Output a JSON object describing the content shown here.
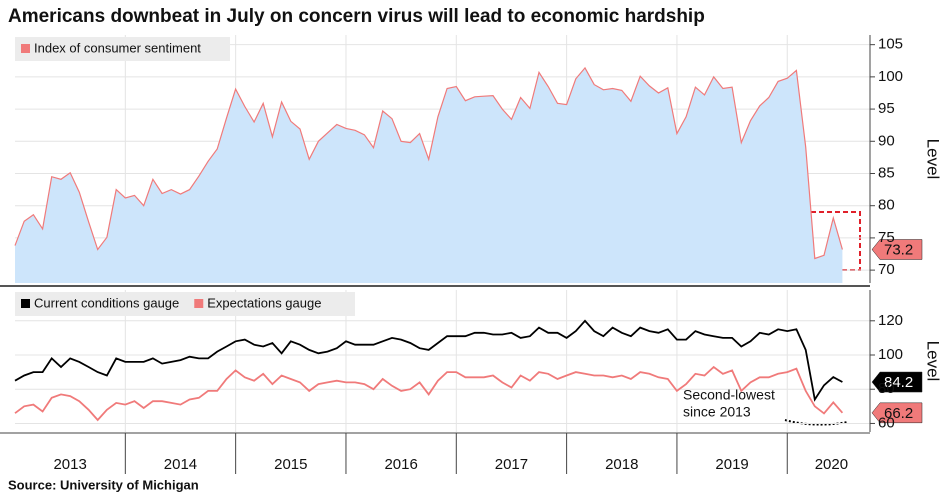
{
  "title": "Americans downbeat in July on concern virus will lead to economic hardship",
  "source": "Source: University of Michigan",
  "chart_data": [
    {
      "type": "area",
      "y_axis_label": "Level",
      "series": [
        {
          "name": "Index of consumer sentiment",
          "color": "#f07a7a",
          "fill": "#cde5fb",
          "values": [
            73.8,
            77.6,
            78.6,
            76.4,
            84.5,
            84.1,
            85.1,
            82.1,
            77.5,
            73.2,
            75.1,
            82.5,
            81.2,
            81.6,
            80.0,
            84.1,
            81.9,
            82.5,
            81.8,
            82.5,
            84.6,
            86.9,
            88.8,
            93.6,
            98.1,
            95.4,
            93.0,
            95.9,
            90.7,
            96.1,
            93.1,
            91.9,
            87.2,
            90.0,
            91.3,
            92.6,
            92.0,
            91.7,
            91.0,
            89.0,
            94.7,
            93.5,
            90.0,
            89.8,
            91.2,
            87.2,
            93.8,
            98.2,
            98.5,
            96.3,
            96.9,
            97.0,
            97.1,
            95.0,
            93.4,
            96.8,
            95.1,
            100.7,
            98.5,
            95.9,
            95.7,
            99.7,
            101.4,
            98.8,
            98.0,
            98.2,
            97.9,
            96.2,
            100.1,
            98.6,
            97.5,
            98.3,
            91.2,
            93.8,
            98.4,
            97.2,
            100.0,
            98.2,
            98.4,
            89.8,
            93.2,
            95.5,
            96.8,
            99.3,
            99.8,
            101.0,
            89.1,
            71.8,
            72.3,
            78.1,
            73.2
          ]
        }
      ],
      "x": [
        2013.0,
        2013.083,
        2013.167,
        2013.25,
        2013.333,
        2013.417,
        2013.5,
        2013.583,
        2013.667,
        2013.75,
        2013.833,
        2013.917,
        2014.0,
        2014.083,
        2014.167,
        2014.25,
        2014.333,
        2014.417,
        2014.5,
        2014.583,
        2014.667,
        2014.75,
        2014.833,
        2014.917,
        2015.0,
        2015.083,
        2015.167,
        2015.25,
        2015.333,
        2015.417,
        2015.5,
        2015.583,
        2015.667,
        2015.75,
        2015.833,
        2015.917,
        2016.0,
        2016.083,
        2016.167,
        2016.25,
        2016.333,
        2016.417,
        2016.5,
        2016.583,
        2016.667,
        2016.75,
        2016.833,
        2016.917,
        2017.0,
        2017.083,
        2017.167,
        2017.25,
        2017.333,
        2017.417,
        2017.5,
        2017.583,
        2017.667,
        2017.75,
        2017.833,
        2017.917,
        2018.0,
        2018.083,
        2018.167,
        2018.25,
        2018.333,
        2018.417,
        2018.5,
        2018.583,
        2018.667,
        2018.75,
        2018.833,
        2018.917,
        2019.0,
        2019.083,
        2019.167,
        2019.25,
        2019.333,
        2019.417,
        2019.5,
        2019.583,
        2019.667,
        2019.75,
        2019.833,
        2019.917,
        2020.0,
        2020.083,
        2020.167,
        2020.25,
        2020.333,
        2020.417,
        2020.5
      ],
      "xlim": [
        2013.0,
        2020.75
      ],
      "ylim": [
        68,
        106.5
      ],
      "yticks": [
        70,
        75,
        80,
        85,
        90,
        95,
        100,
        105
      ],
      "grid": true
    },
    {
      "type": "line",
      "y_axis_label": "Level",
      "series": [
        {
          "name": "Current conditions gauge",
          "color": "#000000",
          "values": [
            85,
            88,
            90,
            90,
            98,
            93,
            98,
            96,
            93,
            90,
            88,
            98,
            96,
            96,
            96,
            98,
            95,
            96,
            97,
            99,
            98,
            98,
            102,
            105,
            108,
            109,
            106,
            105,
            107,
            101,
            108,
            106,
            103,
            101,
            102,
            104,
            108,
            106,
            106,
            106,
            108,
            110,
            109,
            107,
            104,
            103,
            107,
            111,
            111,
            111,
            113,
            113,
            112,
            112,
            113,
            110,
            111,
            116,
            113,
            113,
            110,
            114,
            120,
            114,
            111,
            116,
            113,
            111,
            116,
            114,
            113,
            115,
            109,
            109,
            114,
            112,
            111,
            110,
            110,
            105,
            108,
            113,
            112,
            115,
            114,
            115,
            103,
            74,
            82.3,
            87.1,
            84.2
          ]
        },
        {
          "name": "Expectations gauge",
          "color": "#f07a7a",
          "values": [
            66,
            70,
            71,
            67,
            75,
            77,
            76,
            73,
            68,
            62,
            68,
            72,
            71,
            73,
            69,
            73,
            73,
            72,
            71,
            74,
            75,
            79,
            79,
            86,
            91,
            87,
            85,
            89,
            83,
            88,
            86,
            84,
            79,
            83,
            84,
            85,
            84,
            84,
            83,
            80,
            86,
            82,
            79,
            80,
            84,
            77,
            85,
            90,
            90,
            87,
            87,
            87,
            88,
            84,
            81,
            88,
            85,
            90,
            89,
            86,
            88,
            90,
            89,
            88,
            88,
            87,
            88,
            86,
            90,
            89,
            87,
            86,
            79,
            83,
            89,
            88,
            93,
            89,
            91,
            79,
            84,
            87,
            87,
            89,
            90,
            92,
            79,
            70,
            65.9,
            72.3,
            66.2
          ]
        }
      ],
      "x": [
        2013.0,
        2013.083,
        2013.167,
        2013.25,
        2013.333,
        2013.417,
        2013.5,
        2013.583,
        2013.667,
        2013.75,
        2013.833,
        2013.917,
        2014.0,
        2014.083,
        2014.167,
        2014.25,
        2014.333,
        2014.417,
        2014.5,
        2014.583,
        2014.667,
        2014.75,
        2014.833,
        2014.917,
        2015.0,
        2015.083,
        2015.167,
        2015.25,
        2015.333,
        2015.417,
        2015.5,
        2015.583,
        2015.667,
        2015.75,
        2015.833,
        2015.917,
        2016.0,
        2016.083,
        2016.167,
        2016.25,
        2016.333,
        2016.417,
        2016.5,
        2016.583,
        2016.667,
        2016.75,
        2016.833,
        2016.917,
        2017.0,
        2017.083,
        2017.167,
        2017.25,
        2017.333,
        2017.417,
        2017.5,
        2017.583,
        2017.667,
        2017.75,
        2017.833,
        2017.917,
        2018.0,
        2018.083,
        2018.167,
        2018.25,
        2018.333,
        2018.417,
        2018.5,
        2018.583,
        2018.667,
        2018.75,
        2018.833,
        2018.917,
        2019.0,
        2019.083,
        2019.167,
        2019.25,
        2019.333,
        2019.417,
        2019.5,
        2019.583,
        2019.667,
        2019.75,
        2019.833,
        2019.917,
        2020.0,
        2020.083,
        2020.167,
        2020.25,
        2020.333,
        2020.417,
        2020.5
      ],
      "xlim": [
        2013.0,
        2020.75
      ],
      "xticks": [
        {
          "value": 2013.5,
          "label": "2013"
        },
        {
          "value": 2014.5,
          "label": "2014"
        },
        {
          "value": 2015.5,
          "label": "2015"
        },
        {
          "value": 2016.5,
          "label": "2016"
        },
        {
          "value": 2017.5,
          "label": "2017"
        },
        {
          "value": 2018.5,
          "label": "2018"
        },
        {
          "value": 2019.5,
          "label": "2019"
        },
        {
          "value": 2020.4,
          "label": "2020"
        }
      ],
      "xgrid": [
        2014,
        2015,
        2016,
        2017,
        2018,
        2019,
        2020
      ],
      "ylim": [
        55,
        138
      ],
      "yticks": [
        60,
        80,
        100,
        120
      ],
      "grid": true,
      "annotation": [
        "Second-lowest",
        "since 2013"
      ]
    }
  ]
}
